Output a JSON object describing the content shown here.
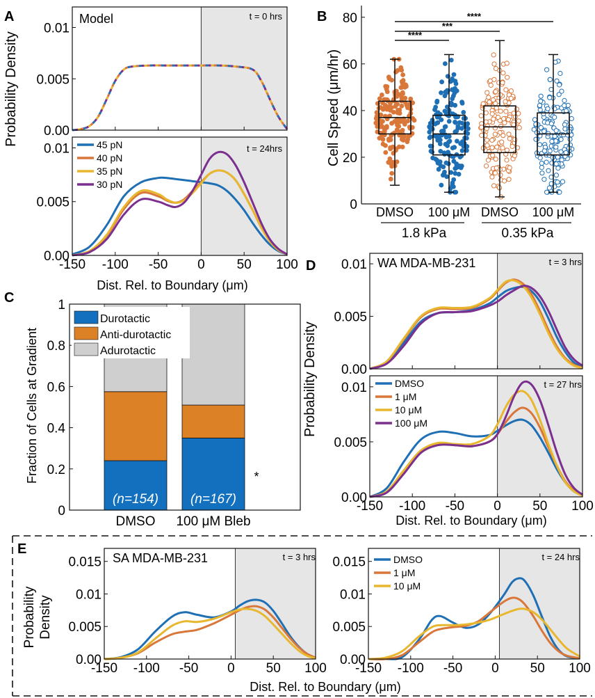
{
  "colors": {
    "blue": "#1f6fb5",
    "orange": "#d9773a",
    "yellow": "#e8b730",
    "purple": "#7b2f8e",
    "bar_blue": "#1370be",
    "bar_orange": "#dd8126",
    "bar_gray": "#cfcfcf",
    "shade": "#e6e6e6"
  },
  "panels": {
    "A": {
      "letter": "A",
      "top": {
        "title": "Model",
        "time": "t = 0 hrs",
        "ytick_labels": [
          "0.00",
          "0.005",
          "0.01"
        ]
      },
      "bottom": {
        "time": "t = 24hrs",
        "ytick_labels": [
          "0.00",
          "0.005",
          "0.01"
        ],
        "legend": [
          "45 pN",
          "40 pN",
          "35 pN",
          "30 pN"
        ]
      },
      "ylabel": "Probability Density",
      "xlabel": "Dist. Rel. to Boundary (μm)",
      "xtick_labels": [
        "-150",
        "-100",
        "-50",
        "0",
        "50",
        "100"
      ]
    },
    "B": {
      "letter": "B",
      "ylabel": "Cell Speed (μm/hr)",
      "ytick_labels": [
        "0",
        "20",
        "40",
        "60",
        "80"
      ],
      "xtick_labels": [
        "DMSO",
        "100 μM",
        "DMSO",
        "100 μM"
      ],
      "groups": [
        "1.8 kPa",
        "0.35 kPa"
      ],
      "sig": [
        "****",
        "***",
        "****"
      ]
    },
    "C": {
      "letter": "C",
      "ylabel": "Fraction of Cells at Gradient",
      "ytick_labels": [
        "0",
        "0.2",
        "0.4",
        "0.6",
        "0.8",
        "1"
      ],
      "xtick_labels": [
        "DMSO",
        "100 μM Bleb"
      ],
      "legend": [
        "Durotactic",
        "Anti-durotactic",
        "Adurotactic"
      ],
      "n_labels": [
        "(n=154)",
        "(n=167)"
      ],
      "star": "*"
    },
    "D": {
      "letter": "D",
      "top": {
        "title": "WA MDA-MB-231",
        "time": "t = 3 hrs",
        "ytick_labels": [
          "0.00",
          "0.005",
          "0.01"
        ]
      },
      "bottom": {
        "time": "t = 27 hrs",
        "ytick_labels": [
          "0.00",
          "0.005",
          "0.01"
        ],
        "legend": [
          "DMSO",
          "1 μM",
          "10 μM",
          "100 μM"
        ]
      },
      "ylabel": "Probability Density",
      "xlabel": "Dist. Rel. to Boundary (μm)",
      "xtick_labels": [
        "-150",
        "-100",
        "-50",
        "0",
        "50",
        "100"
      ]
    },
    "E": {
      "letter": "E",
      "left": {
        "title": "SA MDA-MB-231",
        "time": "t = 3 hrs"
      },
      "right": {
        "time": "t = 24 hrs",
        "legend": [
          "DMSO",
          "1 μM",
          "10 μM"
        ]
      },
      "ylabel_1": "Probability",
      "ylabel_2": "Density",
      "ytick_labels": [
        "0.00",
        "0.005",
        "0.01",
        "0.015"
      ],
      "xtick_labels": [
        "-150",
        "-100",
        "-50",
        "0",
        "50",
        "100"
      ],
      "xlabel": "Dist. Rel. to Boundary (μm)"
    }
  },
  "chart_data": [
    {
      "id": "A-top",
      "type": "line",
      "title": "Model",
      "xlim": [
        -150,
        100
      ],
      "ylim": [
        0,
        0.012
      ],
      "shade_from": 0,
      "x": [
        -150,
        -140,
        -130,
        -120,
        -110,
        -100,
        -90,
        -80,
        -60,
        -40,
        -20,
        0,
        20,
        40,
        60,
        70,
        80,
        90,
        100
      ],
      "series": [
        {
          "name": "45 pN",
          "values": [
            0,
            0.0001,
            0.0004,
            0.0013,
            0.003,
            0.0048,
            0.0059,
            0.0062,
            0.0063,
            0.0063,
            0.0063,
            0.0063,
            0.0063,
            0.0062,
            0.0059,
            0.0048,
            0.003,
            0.0013,
            0.0001
          ]
        },
        {
          "name": "40 pN",
          "values": [
            0,
            0.0001,
            0.0004,
            0.0013,
            0.003,
            0.0048,
            0.0059,
            0.0062,
            0.0063,
            0.0063,
            0.0063,
            0.0063,
            0.0063,
            0.0062,
            0.0059,
            0.0048,
            0.003,
            0.0013,
            0.0001
          ]
        },
        {
          "name": "35 pN",
          "values": [
            0,
            0.0001,
            0.0004,
            0.0013,
            0.003,
            0.0048,
            0.0059,
            0.0062,
            0.0063,
            0.0063,
            0.0063,
            0.0063,
            0.0063,
            0.0062,
            0.0059,
            0.0048,
            0.003,
            0.0013,
            0.0001
          ]
        },
        {
          "name": "30 pN",
          "values": [
            0,
            0.0001,
            0.0004,
            0.0013,
            0.003,
            0.0048,
            0.0059,
            0.0062,
            0.0063,
            0.0063,
            0.0063,
            0.0063,
            0.0063,
            0.0062,
            0.0059,
            0.0048,
            0.003,
            0.0013,
            0.0001
          ]
        }
      ]
    },
    {
      "id": "A-bottom",
      "type": "line",
      "xlim": [
        -150,
        100
      ],
      "ylim": [
        0,
        0.011
      ],
      "shade_from": 0,
      "x": [
        -150,
        -130,
        -110,
        -90,
        -70,
        -50,
        -40,
        -30,
        -20,
        -10,
        0,
        10,
        20,
        30,
        40,
        50,
        60,
        70,
        80,
        90,
        100
      ],
      "series": [
        {
          "name": "45 pN",
          "values": [
            0.0001,
            0.0008,
            0.0028,
            0.0055,
            0.0068,
            0.0072,
            0.0072,
            0.0071,
            0.007,
            0.0069,
            0.0068,
            0.0067,
            0.0065,
            0.006,
            0.0052,
            0.0042,
            0.003,
            0.0019,
            0.001,
            0.0004,
            0.0001
          ]
        },
        {
          "name": "40 pN",
          "values": [
            0,
            0.0004,
            0.0018,
            0.0043,
            0.0058,
            0.0055,
            0.0051,
            0.0049,
            0.0052,
            0.006,
            0.0068,
            0.0076,
            0.0079,
            0.0077,
            0.007,
            0.0057,
            0.0042,
            0.0026,
            0.0013,
            0.0005,
            0.0001
          ]
        },
        {
          "name": "35 pN",
          "values": [
            0,
            0.0004,
            0.0019,
            0.0045,
            0.006,
            0.0057,
            0.0052,
            0.0049,
            0.0051,
            0.0058,
            0.0067,
            0.0076,
            0.0079,
            0.0077,
            0.007,
            0.0057,
            0.0042,
            0.0026,
            0.0013,
            0.0005,
            0.0001
          ]
        },
        {
          "name": "30 pN",
          "values": [
            0,
            0.0003,
            0.0015,
            0.0038,
            0.0052,
            0.005,
            0.0047,
            0.0045,
            0.0049,
            0.006,
            0.0075,
            0.009,
            0.0096,
            0.0094,
            0.0084,
            0.0068,
            0.0049,
            0.003,
            0.0015,
            0.0006,
            0.0001
          ]
        }
      ]
    },
    {
      "id": "B",
      "type": "scatter",
      "ylabel": "Cell Speed (μm/hr)",
      "ylim": [
        0,
        85
      ],
      "categories": [
        "DMSO",
        "100 μM",
        "DMSO",
        "100 μM"
      ],
      "groups": [
        "1.8 kPa",
        "1.8 kPa",
        "0.35 kPa",
        "0.35 kPa"
      ],
      "boxes": [
        {
          "min": 8,
          "q1": 30,
          "median": 37,
          "q3": 44,
          "max": 62
        },
        {
          "min": 5,
          "q1": 21,
          "median": 30,
          "q3": 38,
          "max": 64
        },
        {
          "min": 3,
          "q1": 22,
          "median": 33,
          "q3": 42,
          "max": 70
        },
        {
          "min": 5,
          "q1": 21,
          "median": 30,
          "q3": 39,
          "max": 64
        }
      ],
      "significance": [
        {
          "from": 0,
          "to": 1,
          "label": "****"
        },
        {
          "from": 0,
          "to": 2,
          "label": "***"
        },
        {
          "from": 0,
          "to": 3,
          "label": "****"
        }
      ]
    },
    {
      "id": "C",
      "type": "bar",
      "ylabel": "Fraction of Cells at Gradient",
      "ylim": [
        0,
        1
      ],
      "categories": [
        "DMSO",
        "100 μM Bleb"
      ],
      "series": [
        {
          "name": "Durotactic",
          "values": [
            0.24,
            0.35
          ]
        },
        {
          "name": "Anti-durotactic",
          "values": [
            0.335,
            0.16
          ]
        },
        {
          "name": "Adurotactic",
          "values": [
            0.425,
            0.49
          ]
        }
      ]
    },
    {
      "id": "D-top",
      "type": "line",
      "title": "WA MDA-MB-231",
      "xlim": [
        -150,
        100
      ],
      "ylim": [
        0,
        0.011
      ],
      "shade_from": 0,
      "x": [
        -150,
        -130,
        -110,
        -90,
        -70,
        -50,
        -30,
        -10,
        0,
        10,
        20,
        30,
        40,
        50,
        60,
        70,
        80,
        90,
        100
      ],
      "series": [
        {
          "name": "DMSO",
          "values": [
            0,
            0.0006,
            0.0025,
            0.0045,
            0.0053,
            0.0054,
            0.0056,
            0.0062,
            0.0068,
            0.0074,
            0.0077,
            0.0078,
            0.0074,
            0.0064,
            0.0048,
            0.003,
            0.0016,
            0.0006,
            0.0002
          ]
        },
        {
          "name": "1 μM",
          "values": [
            0,
            0.0007,
            0.0028,
            0.0049,
            0.0057,
            0.0057,
            0.0058,
            0.0066,
            0.0074,
            0.0082,
            0.0085,
            0.0081,
            0.0071,
            0.0055,
            0.0037,
            0.0021,
            0.001,
            0.0004,
            0.0001
          ]
        },
        {
          "name": "10 μM",
          "values": [
            0,
            0.0007,
            0.0029,
            0.005,
            0.0058,
            0.0058,
            0.0059,
            0.0067,
            0.0075,
            0.0083,
            0.0084,
            0.0079,
            0.0068,
            0.0052,
            0.0034,
            0.0019,
            0.0009,
            0.0003,
            0.0001
          ]
        },
        {
          "name": "100 μM",
          "values": [
            0,
            0.0005,
            0.0022,
            0.0043,
            0.0053,
            0.0054,
            0.0055,
            0.006,
            0.0064,
            0.007,
            0.0075,
            0.0079,
            0.0077,
            0.0069,
            0.0055,
            0.0037,
            0.002,
            0.0009,
            0.0003
          ]
        }
      ]
    },
    {
      "id": "D-bottom",
      "type": "line",
      "xlim": [
        -150,
        100
      ],
      "ylim": [
        0,
        0.011
      ],
      "shade_from": 0,
      "x": [
        -150,
        -130,
        -110,
        -90,
        -70,
        -50,
        -30,
        -10,
        0,
        10,
        20,
        30,
        40,
        50,
        60,
        70,
        80,
        90,
        100
      ],
      "series": [
        {
          "name": "DMSO",
          "values": [
            0,
            0.0008,
            0.0032,
            0.0052,
            0.0059,
            0.0058,
            0.0055,
            0.0056,
            0.006,
            0.0065,
            0.0069,
            0.007,
            0.0065,
            0.0054,
            0.004,
            0.0025,
            0.0013,
            0.0005,
            0.0002
          ]
        },
        {
          "name": "1 μM",
          "values": [
            0,
            0.0005,
            0.0024,
            0.0042,
            0.0048,
            0.0047,
            0.0046,
            0.005,
            0.0057,
            0.0068,
            0.0077,
            0.0081,
            0.0076,
            0.0063,
            0.0045,
            0.0028,
            0.0014,
            0.0006,
            0.0002
          ]
        },
        {
          "name": "10 μM",
          "values": [
            0,
            0.0005,
            0.0024,
            0.0042,
            0.0049,
            0.0048,
            0.0048,
            0.0055,
            0.0066,
            0.0082,
            0.0093,
            0.0096,
            0.0088,
            0.007,
            0.0048,
            0.0028,
            0.0013,
            0.0005,
            0.0001
          ]
        },
        {
          "name": "100 μM",
          "values": [
            0,
            0.0004,
            0.0021,
            0.004,
            0.0047,
            0.0047,
            0.0046,
            0.005,
            0.0057,
            0.0073,
            0.0092,
            0.0104,
            0.0102,
            0.0088,
            0.0065,
            0.004,
            0.002,
            0.0008,
            0.0002
          ]
        }
      ]
    },
    {
      "id": "E-left",
      "type": "line",
      "title": "SA MDA-MB-231",
      "xlim": [
        -150,
        100
      ],
      "ylim": [
        0,
        0.017
      ],
      "shade_from": 5,
      "x": [
        -150,
        -130,
        -110,
        -90,
        -70,
        -55,
        -40,
        -20,
        0,
        10,
        20,
        30,
        40,
        50,
        60,
        70,
        80,
        90,
        100
      ],
      "series": [
        {
          "name": "DMSO",
          "values": [
            0,
            0.0003,
            0.0015,
            0.0042,
            0.0065,
            0.0072,
            0.0068,
            0.0064,
            0.0073,
            0.0082,
            0.0089,
            0.0091,
            0.0087,
            0.0074,
            0.0055,
            0.0035,
            0.0019,
            0.0008,
            0.0002
          ]
        },
        {
          "name": "1 μM",
          "values": [
            0,
            0.0002,
            0.0009,
            0.0025,
            0.0038,
            0.0042,
            0.0045,
            0.0055,
            0.0068,
            0.0075,
            0.008,
            0.0081,
            0.0076,
            0.0064,
            0.0048,
            0.0032,
            0.0018,
            0.0008,
            0.0002
          ]
        },
        {
          "name": "10 μM",
          "values": [
            0,
            0.0002,
            0.001,
            0.0031,
            0.0051,
            0.0058,
            0.0057,
            0.0062,
            0.0072,
            0.0076,
            0.0077,
            0.0074,
            0.0066,
            0.0053,
            0.0039,
            0.0025,
            0.0013,
            0.0005,
            0.0001
          ]
        }
      ]
    },
    {
      "id": "E-right",
      "type": "line",
      "xlim": [
        -150,
        100
      ],
      "ylim": [
        0,
        0.017
      ],
      "shade_from": 5,
      "x": [
        -150,
        -130,
        -110,
        -90,
        -75,
        -65,
        -50,
        -35,
        -20,
        -5,
        10,
        20,
        28,
        35,
        45,
        55,
        65,
        75,
        85,
        100
      ],
      "series": [
        {
          "name": "DMSO",
          "values": [
            0,
            0,
            0.0003,
            0.003,
            0.006,
            0.0066,
            0.0056,
            0.0048,
            0.0053,
            0.0072,
            0.0098,
            0.0118,
            0.0124,
            0.012,
            0.0098,
            0.0066,
            0.0035,
            0.0014,
            0.0004,
            0.0001
          ]
        },
        {
          "name": "1 μM",
          "values": [
            0,
            0,
            0.0006,
            0.0026,
            0.0041,
            0.0046,
            0.0049,
            0.0051,
            0.0058,
            0.0073,
            0.0088,
            0.0094,
            0.0092,
            0.0084,
            0.0066,
            0.0044,
            0.0025,
            0.0012,
            0.0005,
            0.0001
          ]
        },
        {
          "name": "10 μM",
          "values": [
            0,
            0.0002,
            0.0012,
            0.0035,
            0.0049,
            0.0052,
            0.0052,
            0.0053,
            0.0056,
            0.0061,
            0.0069,
            0.0074,
            0.0077,
            0.0077,
            0.0072,
            0.0061,
            0.0046,
            0.003,
            0.0016,
            0.0004
          ]
        }
      ]
    }
  ]
}
